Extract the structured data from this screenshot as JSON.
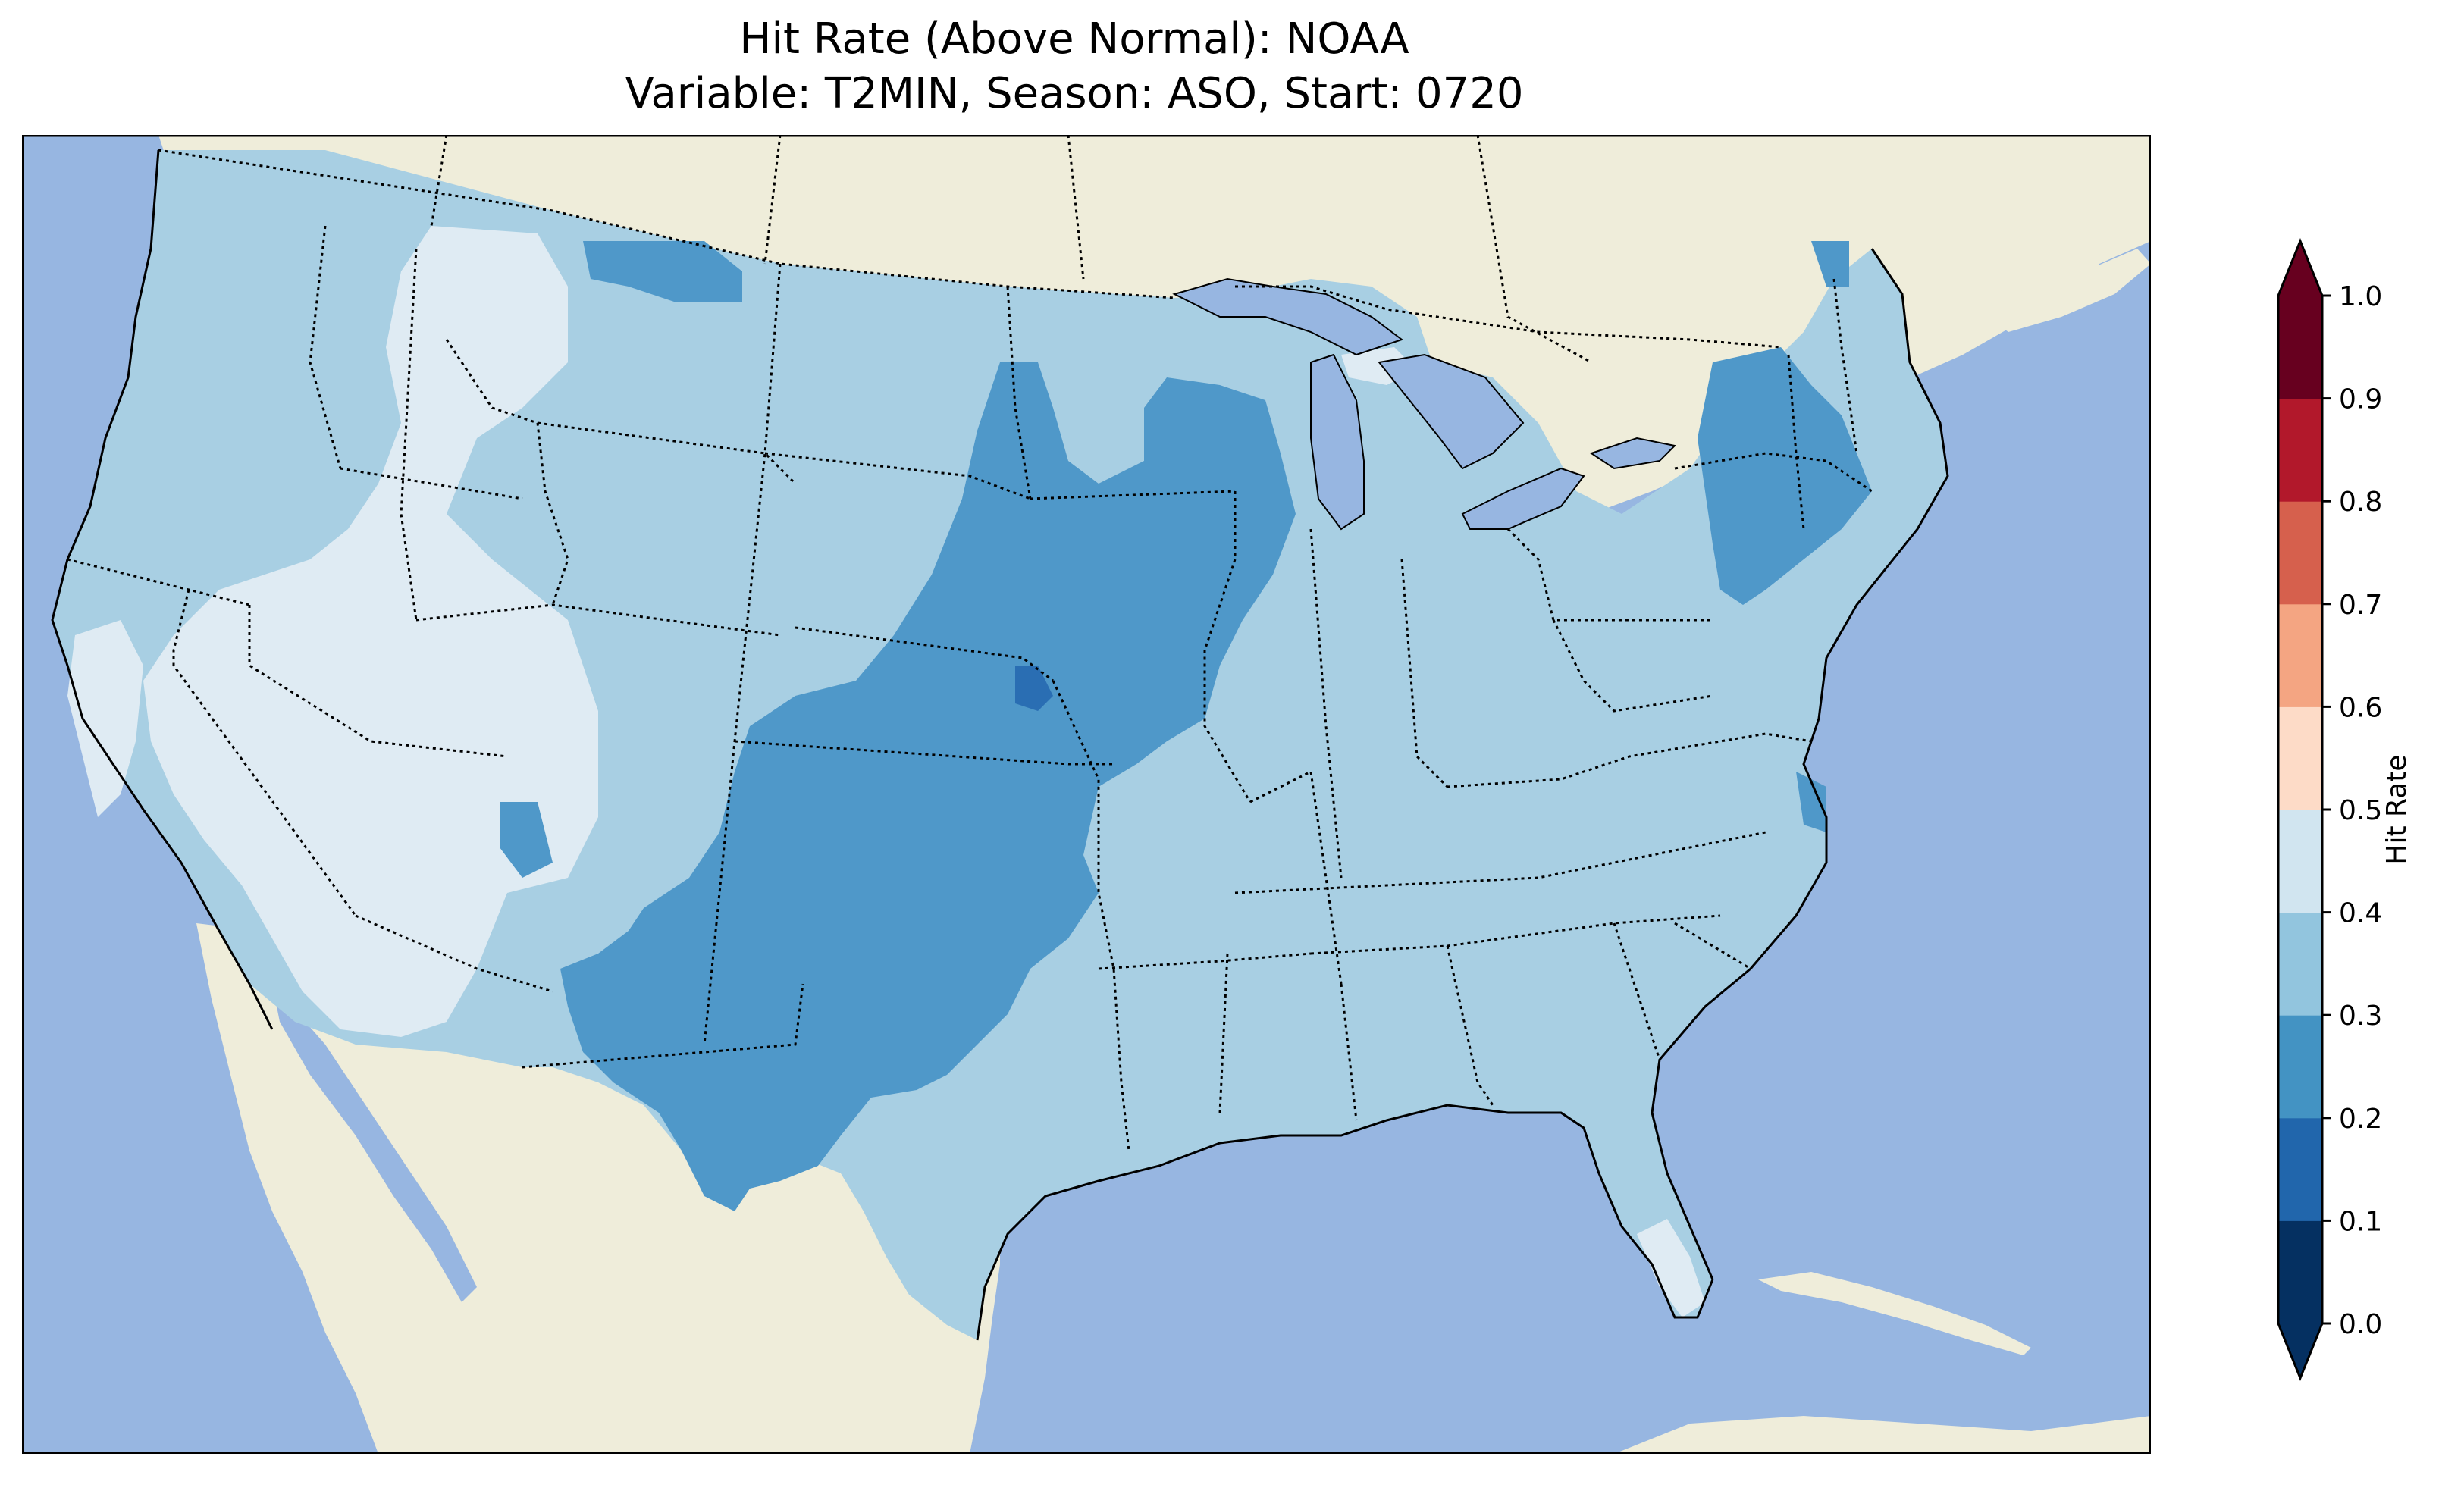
{
  "title": {
    "line1": "Hit Rate (Above Normal): NOAA",
    "line2": "Variable: T2MIN, Season: ASO, Start: 0720"
  },
  "colors": {
    "ocean": "#97b6e1",
    "land": "#efedda",
    "border": "#000000"
  },
  "colorbar": {
    "label": "Hit Rate",
    "min": 0.0,
    "max": 1.0,
    "extend": "both",
    "ticks": [
      "0.0",
      "0.1",
      "0.2",
      "0.3",
      "0.4",
      "0.5",
      "0.6",
      "0.7",
      "0.8",
      "0.9",
      "1.0"
    ],
    "bins": [
      {
        "from": 0.0,
        "to": 0.1,
        "color": "#053061"
      },
      {
        "from": 0.1,
        "to": 0.2,
        "color": "#2166ac"
      },
      {
        "from": 0.2,
        "to": 0.3,
        "color": "#4393c3"
      },
      {
        "from": 0.3,
        "to": 0.4,
        "color": "#92c5de"
      },
      {
        "from": 0.4,
        "to": 0.5,
        "color": "#d1e5f0"
      },
      {
        "from": 0.5,
        "to": 0.6,
        "color": "#fddbc7"
      },
      {
        "from": 0.6,
        "to": 0.7,
        "color": "#f4a582"
      },
      {
        "from": 0.7,
        "to": 0.8,
        "color": "#d6604d"
      },
      {
        "from": 0.8,
        "to": 0.9,
        "color": "#b2182b"
      },
      {
        "from": 0.9,
        "to": 1.0,
        "color": "#67001f"
      }
    ],
    "under_color": "#053061",
    "over_color": "#67001f"
  },
  "map": {
    "region": "Contiguous United States",
    "field_colors": {
      "0.2-0.3": "#4f98c9",
      "0.3-0.4": "#a8cfe3",
      "0.4-0.5": "#dfebf3",
      "0.1-0.2": "#2a6eb3"
    }
  }
}
